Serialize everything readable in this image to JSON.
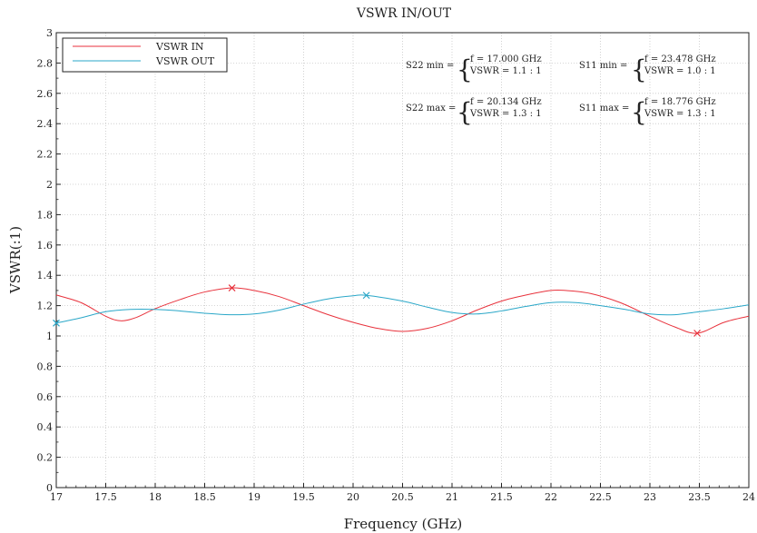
{
  "chart_data": {
    "type": "line",
    "title": "VSWR IN/OUT",
    "xlabel": "Frequency (GHz)",
    "ylabel": "VSWR(:1)",
    "xlim": [
      17,
      24
    ],
    "ylim": [
      0,
      3
    ],
    "xticks": [
      "17",
      "17.5",
      "18",
      "18.5",
      "19",
      "19.5",
      "20",
      "20.5",
      "21",
      "21.5",
      "22",
      "22.5",
      "23",
      "23.5",
      "24"
    ],
    "yticks": [
      "0",
      "0.2",
      "0.4",
      "0.6",
      "0.8",
      "1",
      "1.2",
      "1.4",
      "1.6",
      "1.8",
      "2",
      "2.2",
      "2.4",
      "2.6",
      "2.8",
      "3"
    ],
    "grid": true,
    "legend_position": "top-left",
    "series": [
      {
        "name": "VSWR IN",
        "color": "#e8323c",
        "x": [
          17,
          17.25,
          17.5,
          17.65,
          17.8,
          18,
          18.25,
          18.5,
          18.776,
          19,
          19.25,
          19.5,
          19.75,
          20,
          20.25,
          20.5,
          20.75,
          21,
          21.25,
          21.5,
          21.75,
          22,
          22.15,
          22.4,
          22.7,
          23,
          23.25,
          23.478,
          23.75,
          24
        ],
        "y": [
          1.27,
          1.22,
          1.13,
          1.1,
          1.12,
          1.18,
          1.24,
          1.29,
          1.317,
          1.3,
          1.26,
          1.2,
          1.14,
          1.09,
          1.05,
          1.03,
          1.05,
          1.1,
          1.17,
          1.23,
          1.27,
          1.3,
          1.3,
          1.28,
          1.22,
          1.13,
          1.06,
          1.018,
          1.09,
          1.13
        ]
      },
      {
        "name": "VSWR OUT",
        "color": "#2aa7c8",
        "x": [
          17,
          17.25,
          17.5,
          17.75,
          18,
          18.25,
          18.5,
          18.75,
          19,
          19.25,
          19.5,
          19.75,
          20,
          20.134,
          20.5,
          20.75,
          21,
          21.25,
          21.5,
          21.75,
          22,
          22.25,
          22.5,
          22.75,
          23,
          23.25,
          23.5,
          23.75,
          24
        ],
        "y": [
          1.085,
          1.12,
          1.16,
          1.175,
          1.175,
          1.165,
          1.15,
          1.14,
          1.145,
          1.17,
          1.21,
          1.245,
          1.265,
          1.268,
          1.23,
          1.19,
          1.155,
          1.145,
          1.165,
          1.195,
          1.22,
          1.22,
          1.2,
          1.175,
          1.145,
          1.14,
          1.16,
          1.18,
          1.205
        ]
      }
    ],
    "markers": [
      {
        "series": "VSWR IN",
        "x": 18.776,
        "y": 1.317
      },
      {
        "series": "VSWR IN",
        "x": 23.478,
        "y": 1.018
      },
      {
        "series": "VSWR OUT",
        "x": 17.0,
        "y": 1.085
      },
      {
        "series": "VSWR OUT",
        "x": 20.134,
        "y": 1.268
      }
    ],
    "annotations": [
      {
        "label": "S22 min =",
        "f": "f = 17.000 GHz",
        "vswr": "VSWR = 1.1 : 1"
      },
      {
        "label": "S11 min =",
        "f": "f = 23.478 GHz",
        "vswr": "VSWR = 1.0 : 1"
      },
      {
        "label": "S22 max =",
        "f": "f = 20.134 GHz",
        "vswr": "VSWR = 1.3 : 1"
      },
      {
        "label": "S11 max =",
        "f": "f = 18.776 GHz",
        "vswr": "VSWR = 1.3 : 1"
      }
    ]
  }
}
